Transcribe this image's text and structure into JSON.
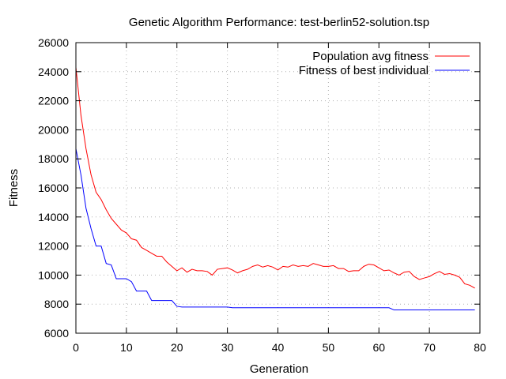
{
  "chart_data": {
    "type": "line",
    "title": "Genetic Algorithm Performance: test-berlin52-solution.tsp",
    "xlabel": "Generation",
    "ylabel": "Fitness",
    "xlim": [
      0,
      80
    ],
    "ylim": [
      6000,
      26000
    ],
    "xticks": [
      0,
      10,
      20,
      30,
      40,
      50,
      60,
      70,
      80
    ],
    "yticks": [
      6000,
      8000,
      10000,
      12000,
      14000,
      16000,
      18000,
      20000,
      22000,
      24000,
      26000
    ],
    "grid": true,
    "legend_position": "top-right",
    "x": [
      0,
      1,
      2,
      3,
      4,
      5,
      6,
      7,
      8,
      9,
      10,
      11,
      12,
      13,
      14,
      15,
      16,
      17,
      18,
      19,
      20,
      21,
      22,
      23,
      24,
      25,
      26,
      27,
      28,
      29,
      30,
      31,
      32,
      33,
      34,
      35,
      36,
      37,
      38,
      39,
      40,
      41,
      42,
      43,
      44,
      45,
      46,
      47,
      48,
      49,
      50,
      51,
      52,
      53,
      54,
      55,
      56,
      57,
      58,
      59,
      60,
      61,
      62,
      63,
      64,
      65,
      66,
      67,
      68,
      69,
      70,
      71,
      72,
      73,
      74,
      75,
      76,
      77,
      78,
      79
    ],
    "series": [
      {
        "name": "Population avg fitness",
        "color": "#ff0000",
        "values": [
          24300,
          21000,
          18700,
          16900,
          15700,
          15200,
          14500,
          13900,
          13500,
          13100,
          12900,
          12500,
          12400,
          11900,
          11700,
          11500,
          11300,
          11300,
          10900,
          10600,
          10300,
          10500,
          10200,
          10400,
          10300,
          10300,
          10250,
          10000,
          10400,
          10450,
          10500,
          10350,
          10150,
          10300,
          10400,
          10600,
          10700,
          10550,
          10650,
          10550,
          10350,
          10600,
          10550,
          10700,
          10600,
          10650,
          10600,
          10800,
          10700,
          10600,
          10600,
          10650,
          10450,
          10450,
          10250,
          10300,
          10300,
          10600,
          10750,
          10700,
          10500,
          10300,
          10350,
          10150,
          10000,
          10200,
          10250,
          9900,
          9700,
          9800,
          9900,
          10100,
          10250,
          10050,
          10100,
          10000,
          9850,
          9400,
          9300,
          9100
        ]
      },
      {
        "name": "Fitness of best individual",
        "color": "#0000ff",
        "values": [
          18700,
          16900,
          14600,
          13200,
          12000,
          12000,
          10800,
          10700,
          9750,
          9750,
          9750,
          9550,
          8900,
          8900,
          8900,
          8250,
          8250,
          8250,
          8250,
          8250,
          7850,
          7800,
          7800,
          7800,
          7800,
          7800,
          7800,
          7800,
          7800,
          7800,
          7800,
          7750,
          7750,
          7750,
          7750,
          7750,
          7750,
          7750,
          7750,
          7750,
          7750,
          7750,
          7750,
          7750,
          7750,
          7750,
          7750,
          7750,
          7750,
          7750,
          7750,
          7750,
          7750,
          7750,
          7750,
          7750,
          7750,
          7750,
          7750,
          7750,
          7750,
          7750,
          7750,
          7600,
          7600,
          7600,
          7600,
          7600,
          7600,
          7600,
          7600,
          7600,
          7600,
          7600,
          7600,
          7600,
          7600,
          7600,
          7600,
          7600
        ]
      }
    ]
  }
}
